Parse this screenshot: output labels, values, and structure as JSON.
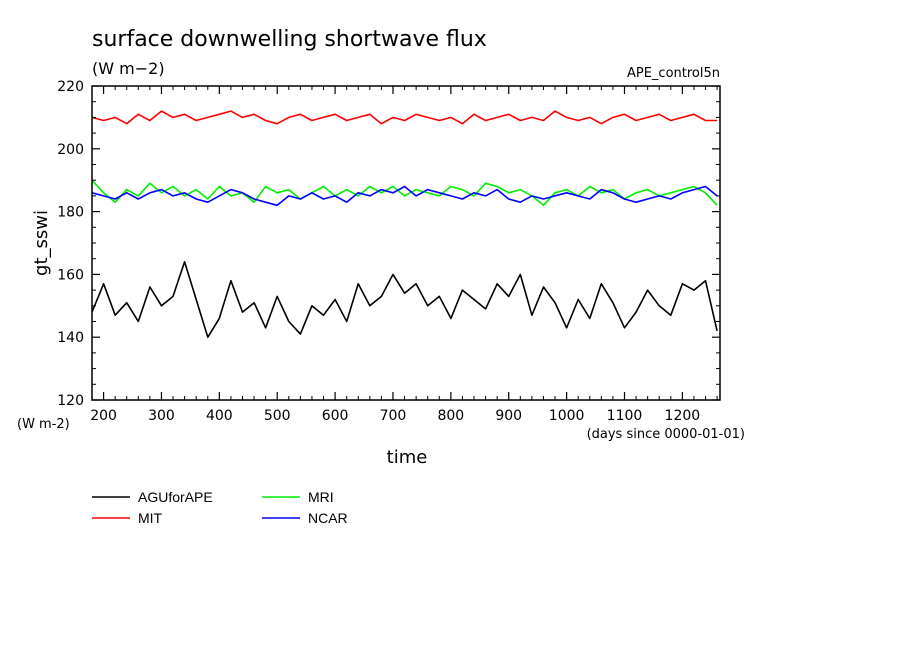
{
  "page": {
    "title": "surface downwelling shortwave flux",
    "units": "(W m−2)",
    "experiment": "APE_control5n"
  },
  "chart_data": {
    "type": "line",
    "title": "surface downwelling shortwave flux",
    "xlabel": "time",
    "x_units": "(days since 0000-01-01)",
    "ylabel": "gt_sswi",
    "y_units": "(W m-2)",
    "xlim": [
      180,
      1265
    ],
    "ylim": [
      120,
      220
    ],
    "xticks": [
      200,
      300,
      400,
      500,
      600,
      700,
      800,
      900,
      1000,
      1100,
      1200
    ],
    "yticks": [
      120,
      140,
      160,
      180,
      200,
      220
    ],
    "grid": false,
    "legend_position": "bottom-left",
    "x": [
      180,
      200,
      220,
      240,
      260,
      280,
      300,
      320,
      340,
      360,
      380,
      400,
      420,
      440,
      460,
      480,
      500,
      520,
      540,
      560,
      580,
      600,
      620,
      640,
      660,
      680,
      700,
      720,
      740,
      760,
      780,
      800,
      820,
      840,
      860,
      880,
      900,
      920,
      940,
      960,
      980,
      1000,
      1020,
      1040,
      1060,
      1080,
      1100,
      1120,
      1140,
      1160,
      1180,
      1200,
      1220,
      1240,
      1260
    ],
    "series": [
      {
        "name": "AGUforAPE",
        "color": "#000000",
        "values": [
          148,
          157,
          147,
          151,
          145,
          156,
          150,
          153,
          164,
          152,
          140,
          146,
          158,
          148,
          151,
          143,
          153,
          145,
          141,
          150,
          147,
          152,
          145,
          157,
          150,
          153,
          160,
          154,
          157,
          150,
          153,
          146,
          155,
          152,
          149,
          157,
          153,
          160,
          147,
          156,
          151,
          143,
          152,
          146,
          157,
          151,
          143,
          148,
          155,
          150,
          147,
          157,
          155,
          158,
          142
        ]
      },
      {
        "name": "MIT",
        "color": "#ff0000",
        "values": [
          210,
          209,
          210,
          208,
          211,
          209,
          212,
          210,
          211,
          209,
          210,
          211,
          212,
          210,
          211,
          209,
          208,
          210,
          211,
          209,
          210,
          211,
          209,
          210,
          211,
          208,
          210,
          209,
          211,
          210,
          209,
          210,
          208,
          211,
          209,
          210,
          211,
          209,
          210,
          209,
          212,
          210,
          209,
          210,
          208,
          210,
          211,
          209,
          210,
          211,
          209,
          210,
          211,
          209,
          209
        ]
      },
      {
        "name": "MRI",
        "color": "#00ee00",
        "values": [
          190,
          186,
          183,
          187,
          185,
          189,
          186,
          188,
          185,
          187,
          184,
          188,
          185,
          186,
          183,
          188,
          186,
          187,
          184,
          186,
          188,
          185,
          187,
          185,
          188,
          186,
          188,
          185,
          187,
          186,
          185,
          188,
          187,
          185,
          189,
          188,
          186,
          187,
          185,
          182,
          186,
          187,
          185,
          188,
          186,
          187,
          184,
          186,
          187,
          185,
          186,
          187,
          188,
          186,
          182
        ]
      },
      {
        "name": "NCAR",
        "color": "#0000ff",
        "values": [
          186,
          185,
          184,
          186,
          184,
          186,
          187,
          185,
          186,
          184,
          183,
          185,
          187,
          186,
          184,
          183,
          182,
          185,
          184,
          186,
          184,
          185,
          183,
          186,
          185,
          187,
          186,
          188,
          185,
          187,
          186,
          185,
          184,
          186,
          185,
          187,
          184,
          183,
          185,
          184,
          185,
          186,
          185,
          184,
          187,
          186,
          184,
          183,
          184,
          185,
          184,
          186,
          187,
          188,
          185
        ]
      }
    ]
  }
}
